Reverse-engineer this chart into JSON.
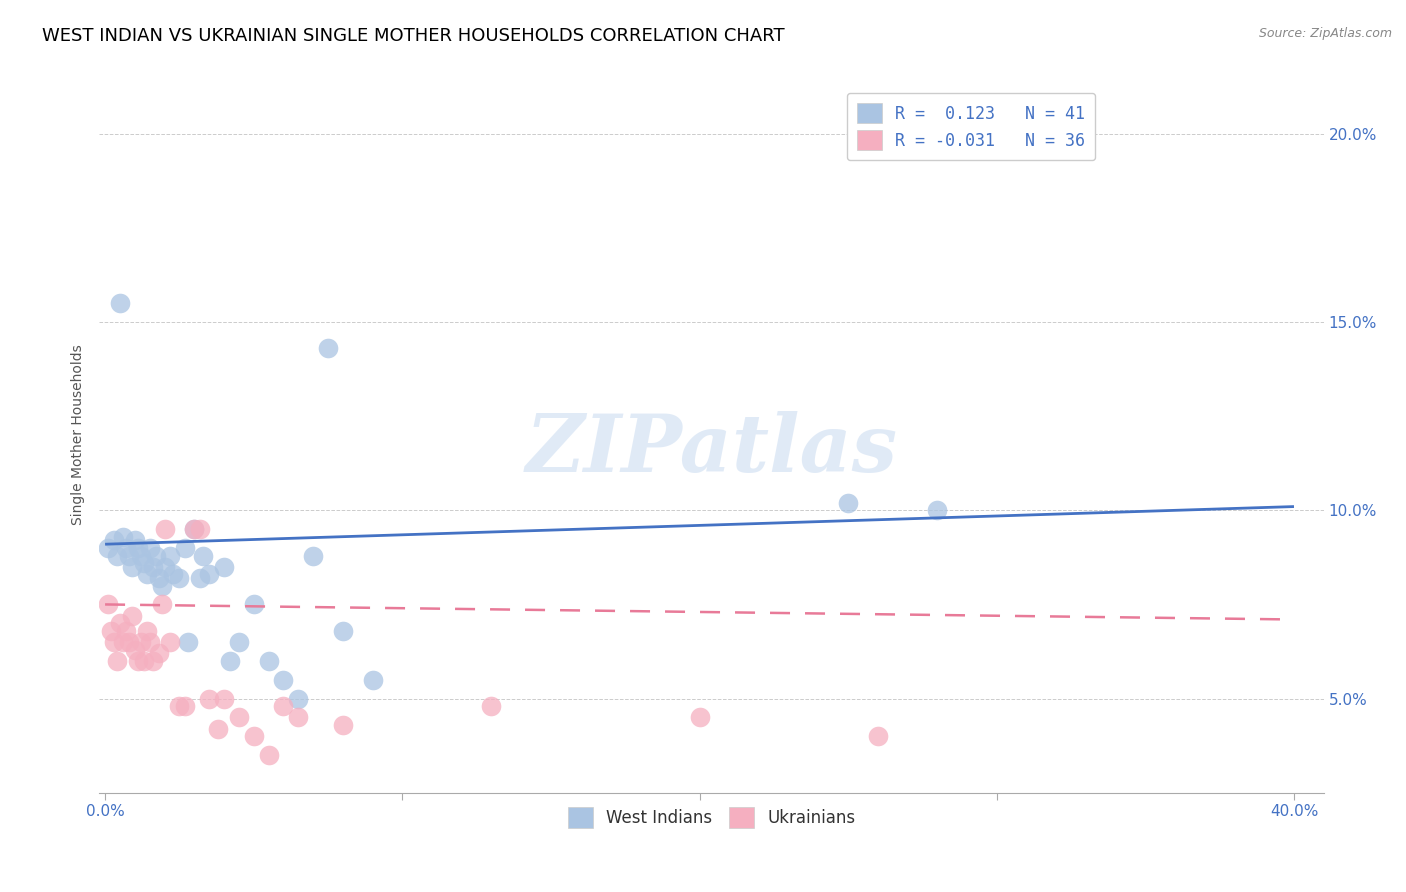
{
  "title": "WEST INDIAN VS UKRAINIAN SINGLE MOTHER HOUSEHOLDS CORRELATION CHART",
  "source": "Source: ZipAtlas.com",
  "ylabel": "Single Mother Households",
  "x_tick_labels": [
    "0.0%",
    "",
    "",
    "",
    "40.0%"
  ],
  "x_ticks": [
    0.0,
    0.1,
    0.2,
    0.3,
    0.4
  ],
  "y_tick_labels": [
    "5.0%",
    "10.0%",
    "15.0%",
    "20.0%"
  ],
  "y_ticks": [
    0.05,
    0.1,
    0.15,
    0.2
  ],
  "xlim": [
    -0.002,
    0.41
  ],
  "ylim": [
    0.025,
    0.215
  ],
  "legend_entries": [
    {
      "label": "R =  0.123   N = 41",
      "color": "#aac4e2"
    },
    {
      "label": "R = -0.031   N = 36",
      "color": "#f5afc0"
    }
  ],
  "west_indians_x": [
    0.001,
    0.003,
    0.004,
    0.005,
    0.006,
    0.007,
    0.008,
    0.009,
    0.01,
    0.011,
    0.012,
    0.013,
    0.014,
    0.015,
    0.016,
    0.017,
    0.018,
    0.019,
    0.02,
    0.022,
    0.023,
    0.025,
    0.027,
    0.028,
    0.03,
    0.032,
    0.033,
    0.035,
    0.04,
    0.042,
    0.045,
    0.05,
    0.055,
    0.06,
    0.065,
    0.07,
    0.075,
    0.08,
    0.09,
    0.25,
    0.28
  ],
  "west_indians_y": [
    0.09,
    0.092,
    0.088,
    0.155,
    0.093,
    0.09,
    0.088,
    0.085,
    0.092,
    0.09,
    0.088,
    0.086,
    0.083,
    0.09,
    0.085,
    0.088,
    0.082,
    0.08,
    0.085,
    0.088,
    0.083,
    0.082,
    0.09,
    0.065,
    0.095,
    0.082,
    0.088,
    0.083,
    0.085,
    0.06,
    0.065,
    0.075,
    0.06,
    0.055,
    0.05,
    0.088,
    0.143,
    0.068,
    0.055,
    0.102,
    0.1
  ],
  "ukrainians_x": [
    0.001,
    0.002,
    0.003,
    0.004,
    0.005,
    0.006,
    0.007,
    0.008,
    0.009,
    0.01,
    0.011,
    0.012,
    0.013,
    0.014,
    0.015,
    0.016,
    0.018,
    0.019,
    0.02,
    0.022,
    0.025,
    0.027,
    0.03,
    0.032,
    0.035,
    0.038,
    0.04,
    0.045,
    0.05,
    0.055,
    0.06,
    0.065,
    0.08,
    0.13,
    0.2,
    0.26
  ],
  "ukrainians_y": [
    0.075,
    0.068,
    0.065,
    0.06,
    0.07,
    0.065,
    0.068,
    0.065,
    0.072,
    0.063,
    0.06,
    0.065,
    0.06,
    0.068,
    0.065,
    0.06,
    0.062,
    0.075,
    0.095,
    0.065,
    0.048,
    0.048,
    0.095,
    0.095,
    0.05,
    0.042,
    0.05,
    0.045,
    0.04,
    0.035,
    0.048,
    0.045,
    0.043,
    0.048,
    0.045,
    0.04
  ],
  "wi_line_start_y": 0.091,
  "wi_line_end_y": 0.101,
  "uk_line_start_y": 0.075,
  "uk_line_end_y": 0.071,
  "wi_color": "#aac4e2",
  "uk_color": "#f5afc0",
  "wi_line_color": "#4472c4",
  "uk_line_color": "#e87a98",
  "background_color": "#ffffff",
  "grid_color": "#cccccc",
  "watermark": "ZIPatlas",
  "title_fontsize": 13,
  "axis_label_fontsize": 10,
  "tick_fontsize": 11,
  "legend_fontsize": 12
}
